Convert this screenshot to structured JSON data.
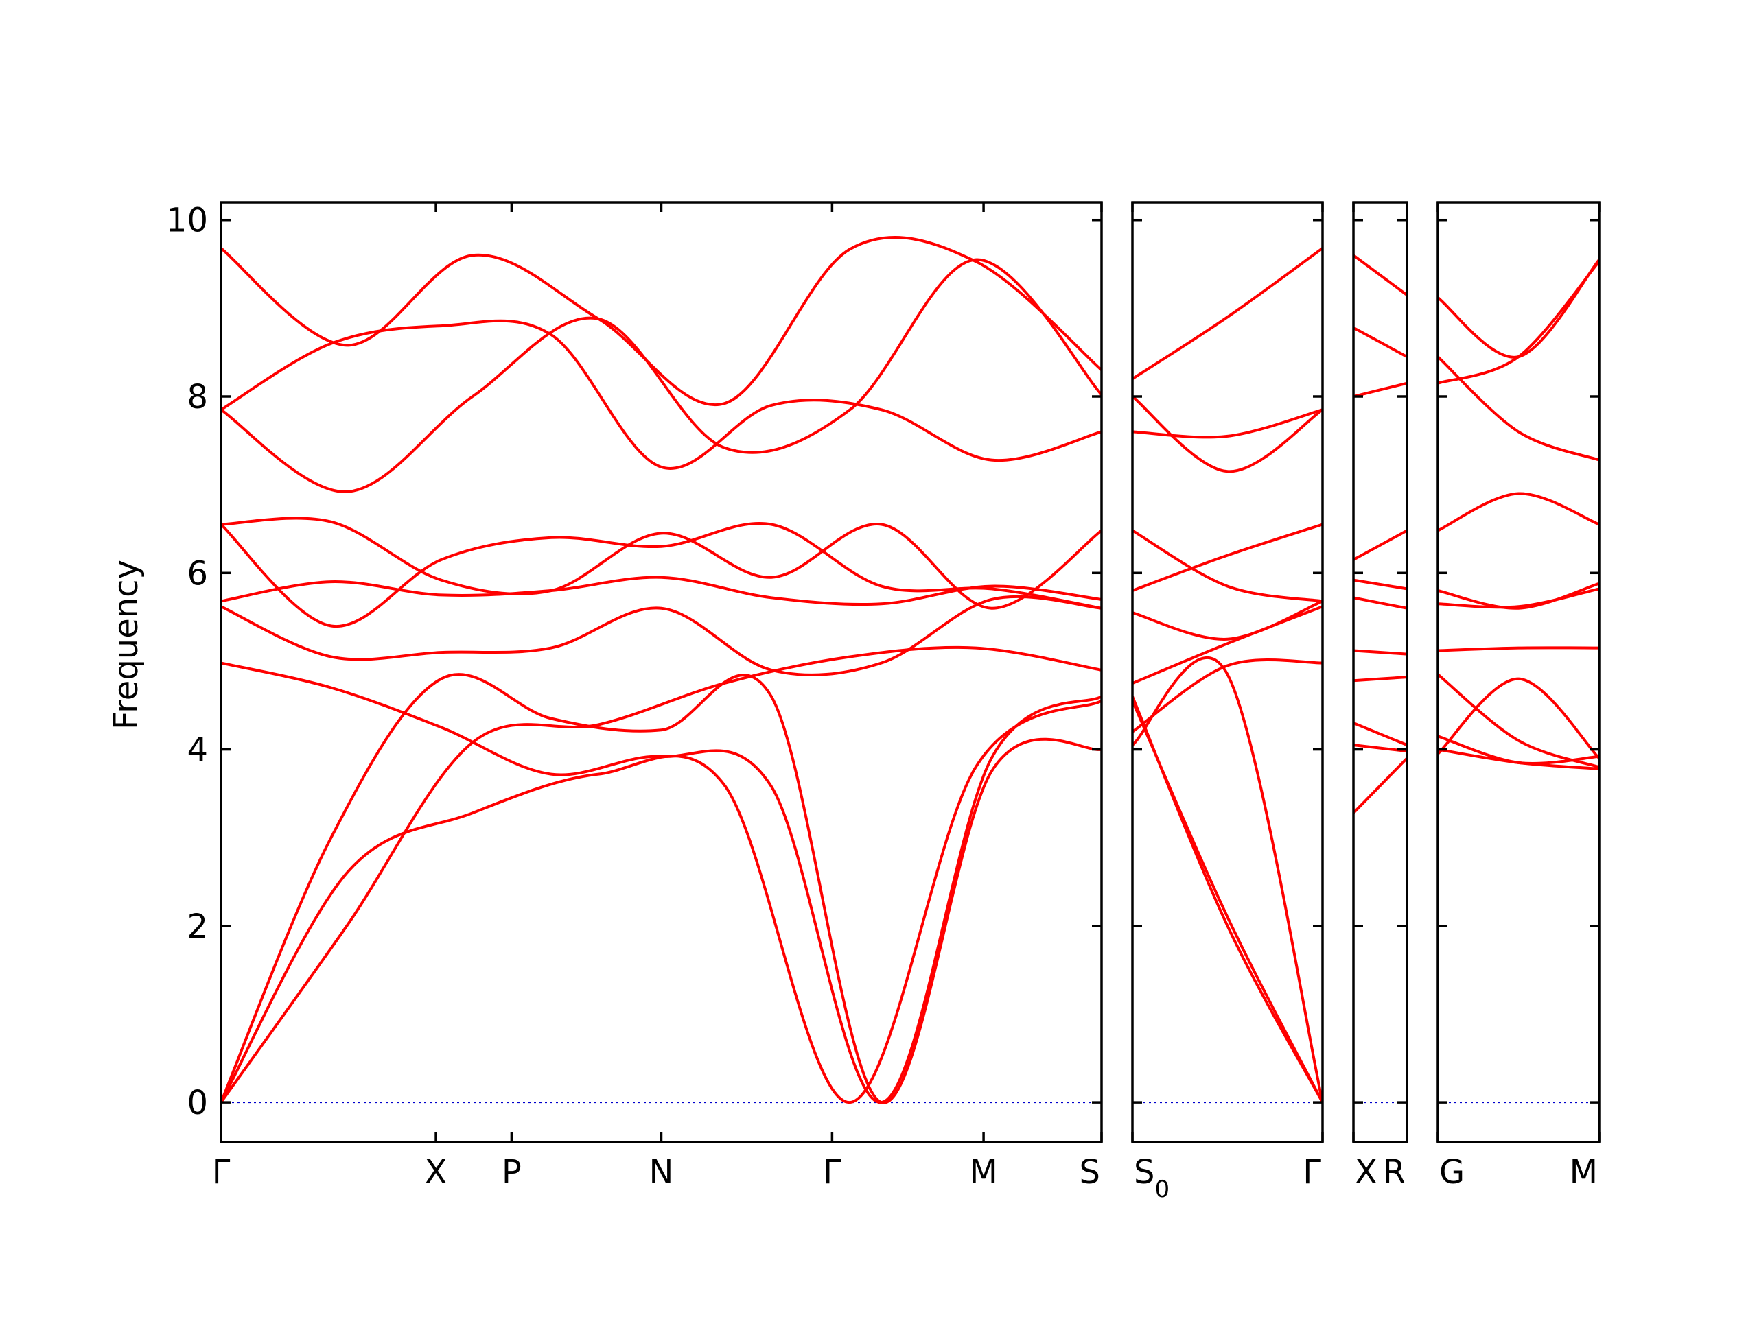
{
  "chart_data": {
    "type": "line",
    "title": "",
    "xlabel": "",
    "ylabel": "Frequency",
    "ylim": [
      -0.45,
      10.2
    ],
    "yticks": [
      0,
      2,
      4,
      6,
      8,
      10
    ],
    "band_color": "#ff0000",
    "zero_line_color": "#0000cc",
    "segments": [
      {
        "labels": [
          "Γ",
          "X",
          "P",
          "N",
          "Γ",
          "M",
          "S"
        ],
        "x": [
          0,
          1.22,
          1.65,
          2.5,
          3.47,
          4.33,
          5.0
        ],
        "bands": [
          [
            0,
            3.0,
            4.8,
            4.35,
            4.22,
            4.6,
            0,
            3.75,
            4.0
          ],
          [
            0,
            2.6,
            3.28,
            3.72,
            3.6,
            0,
            3.8,
            4.55
          ],
          [
            0,
            2.0,
            4.08,
            4.28,
            4.75,
            5.05,
            5.15,
            4.9
          ],
          [
            4.98,
            4.7,
            4.25,
            3.72,
            3.92,
            3.58,
            0,
            3.9,
            4.6
          ],
          [
            5.62,
            5.05,
            5.1,
            5.15,
            5.6,
            4.9,
            4.98,
            5.7,
            5.6
          ],
          [
            5.68,
            5.9,
            5.75,
            5.8,
            5.95,
            5.72,
            5.65,
            5.85,
            5.7
          ],
          [
            6.55,
            5.4,
            6.15,
            6.4,
            6.3,
            6.55,
            5.85,
            5.82,
            5.6
          ],
          [
            6.55,
            6.58,
            5.92,
            5.8,
            6.45,
            5.95,
            6.55,
            5.6,
            6.48
          ],
          [
            7.85,
            6.92,
            8.0,
            8.88,
            7.42,
            7.85,
            9.55,
            8.02
          ],
          [
            7.85,
            8.6,
            8.8,
            8.7,
            7.2,
            7.9,
            7.85,
            7.28,
            7.6
          ],
          [
            9.68,
            8.58,
            9.6,
            8.88,
            7.92,
            9.67,
            9.53,
            8.3
          ]
        ]
      },
      {
        "labels": [
          "S0",
          "Γ"
        ],
        "x": [
          0,
          1.0
        ],
        "bands": [
          [
            4.6,
            2.0,
            0
          ],
          [
            4.55,
            2.1,
            0
          ],
          [
            4.05,
            4.85,
            0
          ],
          [
            4.2,
            4.95,
            4.98
          ],
          [
            4.75,
            5.2,
            5.62
          ],
          [
            5.55,
            5.25,
            5.68
          ],
          [
            5.8,
            6.2,
            6.55
          ],
          [
            6.48,
            5.85,
            5.68
          ],
          [
            7.6,
            7.55,
            7.85
          ],
          [
            8.0,
            7.15,
            7.85
          ],
          [
            8.2,
            8.9,
            9.68
          ]
        ]
      },
      {
        "labels": [
          "X",
          "R"
        ],
        "x": [
          0,
          1.0
        ],
        "bands": [
          [
            3.28,
            3.9
          ],
          [
            4.05,
            3.98
          ],
          [
            4.3,
            4.05
          ],
          [
            4.78,
            4.82
          ],
          [
            5.12,
            5.08
          ],
          [
            5.72,
            5.6
          ],
          [
            5.92,
            5.82
          ],
          [
            6.15,
            6.48
          ],
          [
            8.0,
            8.15
          ],
          [
            8.78,
            8.45
          ],
          [
            9.6,
            9.15
          ]
        ]
      },
      {
        "labels": [
          "G",
          "M"
        ],
        "x": [
          0,
          1.0
        ],
        "bands": [
          [
            3.95,
            4.8,
            3.9
          ],
          [
            4.0,
            3.85,
            3.78
          ],
          [
            4.15,
            3.85,
            3.92
          ],
          [
            4.85,
            4.1,
            3.8
          ],
          [
            5.12,
            5.15,
            5.15
          ],
          [
            5.65,
            5.62,
            5.82
          ],
          [
            5.8,
            5.6,
            5.88
          ],
          [
            6.48,
            6.9,
            6.55
          ],
          [
            8.15,
            8.45,
            9.53
          ],
          [
            8.45,
            7.6,
            7.28
          ],
          [
            9.12,
            8.45,
            9.55
          ]
        ]
      }
    ]
  }
}
